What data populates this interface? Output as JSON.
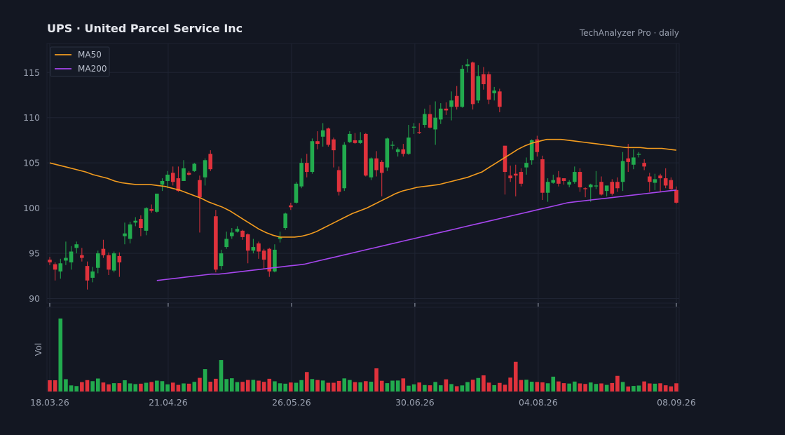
{
  "header": {
    "title": "UPS  ·  United Parcel Service Inc",
    "brand": "TechAnalyzer Pro · daily"
  },
  "colors": {
    "background": "#131722",
    "grid": "#1f2433",
    "up": "#22ab4e",
    "down": "#e0323c",
    "ma50": "#f39c1f",
    "ma200": "#a646ee",
    "text": "#9aa1b0"
  },
  "chart_data": {
    "type": "candlestick",
    "y_ticks": [
      90,
      95,
      100,
      105,
      110,
      115
    ],
    "ylim": [
      89.5,
      118.2
    ],
    "x_tick_labels": [
      "18.03.26",
      "21.04.26",
      "26.05.26",
      "30.06.26",
      "04.08.26",
      "08.09.26"
    ],
    "volume_label": "Vol",
    "legend": [
      {
        "name": "MA50",
        "color": "#f39c1f"
      },
      {
        "name": "MA200",
        "color": "#a646ee"
      }
    ],
    "closes": [
      94.0,
      93.2,
      93.9,
      94.5,
      95.2,
      96.0,
      94.5,
      92.0,
      93.0,
      95.0,
      94.8,
      93.2,
      95.0,
      94.0,
      97.2,
      98.2,
      98.6,
      97.8,
      100.0,
      99.7,
      101.6,
      103.0,
      103.7,
      102.9,
      101.9,
      104.4,
      103.7,
      104.9,
      101.2,
      105.3,
      104.3,
      93.2,
      95.0,
      96.6,
      97.3,
      97.7,
      96.8,
      95.3,
      95.7,
      95.2,
      94.3,
      93.0,
      95.4,
      96.8,
      99.4,
      100.1,
      102.7,
      105.0,
      104.0,
      107.4,
      107.1,
      108.6,
      107.0,
      106.4,
      101.8,
      107.0,
      108.2,
      107.2,
      107.5,
      103.6,
      105.5,
      104.2,
      103.9,
      107.7,
      107.0,
      106.5,
      106.0,
      107.8,
      109.0,
      108.3,
      110.4,
      108.9,
      110.0,
      111.0,
      110.8,
      111.9,
      111.2,
      115.4,
      115.9,
      111.5,
      114.6,
      113.7,
      112.0,
      113.0,
      111.2,
      104.0,
      103.3,
      103.6,
      102.7,
      105.0,
      107.5,
      106.2,
      101.7,
      102.9,
      103.1,
      102.7,
      103.0,
      102.9,
      104.0,
      102.3,
      102.1,
      102.6,
      102.5,
      101.5,
      102.5,
      101.6,
      102.2,
      105.2,
      105.1,
      105.6,
      106.0,
      104.6,
      102.9,
      103.2,
      103.3,
      102.5,
      102.1,
      100.6
    ],
    "opens": [
      94.3,
      93.8,
      93.0,
      94.2,
      94.0,
      95.6,
      94.8,
      93.6,
      92.3,
      93.4,
      95.5,
      94.8,
      93.1,
      94.7,
      96.9,
      96.6,
      98.4,
      98.8,
      97.5,
      99.9,
      99.6,
      102.6,
      103.0,
      103.9,
      103.3,
      103.0,
      103.9,
      104.1,
      103.1,
      103.4,
      106.0,
      99.1,
      93.6,
      95.7,
      96.9,
      97.4,
      97.5,
      97.1,
      95.3,
      96.1,
      95.3,
      95.5,
      93.0,
      96.6,
      97.8,
      100.3,
      100.6,
      102.4,
      105.0,
      104.0,
      107.4,
      107.9,
      108.8,
      107.6,
      104.2,
      102.2,
      107.3,
      107.5,
      107.2,
      108.2,
      103.4,
      105.5,
      105.1,
      104.5,
      106.9,
      106.2,
      106.5,
      106.0,
      108.9,
      108.4,
      109.2,
      110.4,
      108.7,
      109.8,
      111.0,
      111.2,
      112.4,
      111.2,
      115.7,
      116.1,
      111.9,
      114.8,
      114.8,
      112.7,
      112.9,
      106.9,
      103.6,
      103.8,
      104.0,
      104.5,
      105.3,
      107.6,
      105.4,
      101.7,
      102.8,
      103.4,
      103.3,
      102.6,
      102.9,
      104.0,
      102.2,
      102.3,
      102.4,
      102.9,
      101.9,
      102.9,
      102.9,
      102.9,
      105.5,
      104.8,
      105.9,
      105.0,
      103.5,
      102.8,
      103.6,
      103.3,
      103.1,
      102.0
    ],
    "highs": [
      94.6,
      94.0,
      94.4,
      96.3,
      95.8,
      96.3,
      95.6,
      94.1,
      93.5,
      95.3,
      96.5,
      95.1,
      95.2,
      95.1,
      98.4,
      98.5,
      99.0,
      99.2,
      100.1,
      100.4,
      101.6,
      103.3,
      104.1,
      104.6,
      104.6,
      105.3,
      104.1,
      105.0,
      103.6,
      105.5,
      106.4,
      99.8,
      95.4,
      97.4,
      97.8,
      98.0,
      97.6,
      97.2,
      96.6,
      96.3,
      95.5,
      95.6,
      96.0,
      97.4,
      99.5,
      100.6,
      102.9,
      105.5,
      106.0,
      107.7,
      108.5,
      109.4,
      108.9,
      107.8,
      104.6,
      107.3,
      108.5,
      108.3,
      108.4,
      108.3,
      105.6,
      106.3,
      105.3,
      107.8,
      107.4,
      106.7,
      107.1,
      109.2,
      109.4,
      109.4,
      111.0,
      111.4,
      111.8,
      111.6,
      111.7,
      112.9,
      113.5,
      115.8,
      116.5,
      116.2,
      115.8,
      115.6,
      115.1,
      113.4,
      113.2,
      106.9,
      104.7,
      104.8,
      104.4,
      105.6,
      107.6,
      108.0,
      105.8,
      103.3,
      103.7,
      104.1,
      103.3,
      103.1,
      104.6,
      104.4,
      102.3,
      102.7,
      104.1,
      103.5,
      102.2,
      103.2,
      103.4,
      106.2,
      107.1,
      106.5,
      106.2,
      105.4,
      103.9,
      103.8,
      103.8,
      104.4,
      103.4,
      102.4
    ],
    "lows": [
      93.7,
      92.0,
      92.2,
      93.7,
      93.2,
      95.0,
      94.1,
      91.0,
      91.8,
      92.8,
      94.5,
      92.6,
      92.9,
      92.4,
      96.0,
      96.1,
      98.0,
      96.9,
      97.0,
      99.5,
      99.5,
      101.9,
      102.2,
      102.5,
      101.8,
      103.0,
      103.6,
      104.0,
      97.3,
      102.5,
      104.1,
      92.9,
      93.2,
      95.5,
      96.6,
      97.3,
      96.5,
      93.9,
      95.0,
      94.4,
      93.3,
      92.4,
      92.9,
      96.2,
      97.6,
      99.8,
      100.5,
      102.2,
      103.4,
      103.8,
      106.5,
      106.8,
      106.8,
      104.5,
      101.4,
      101.9,
      107.2,
      107.1,
      107.1,
      103.5,
      103.1,
      103.5,
      101.3,
      104.1,
      106.5,
      105.7,
      105.7,
      105.9,
      108.2,
      108.2,
      108.9,
      108.8,
      107.0,
      109.3,
      110.3,
      109.7,
      110.9,
      111.1,
      115.0,
      110.9,
      111.6,
      113.1,
      111.5,
      111.9,
      110.6,
      101.5,
      102.9,
      101.3,
      102.4,
      103.7,
      104.8,
      105.7,
      100.9,
      100.7,
      102.7,
      102.4,
      102.6,
      102.3,
      102.7,
      101.8,
      101.2,
      100.7,
      102.1,
      101.4,
      101.3,
      101.4,
      101.8,
      101.9,
      104.0,
      104.3,
      105.6,
      104.2,
      101.8,
      102.0,
      101.8,
      102.2,
      102.0,
      100.5
    ],
    "volumes": [
      0.85,
      0.85,
      5.51,
      0.93,
      0.46,
      0.41,
      0.71,
      0.86,
      0.78,
      0.98,
      0.68,
      0.54,
      0.63,
      0.63,
      0.85,
      0.61,
      0.56,
      0.59,
      0.66,
      0.72,
      0.82,
      0.78,
      0.54,
      0.67,
      0.5,
      0.61,
      0.59,
      0.73,
      1.03,
      1.69,
      0.74,
      0.96,
      2.38,
      0.94,
      1.0,
      0.71,
      0.73,
      0.87,
      0.88,
      0.82,
      0.73,
      0.96,
      0.77,
      0.62,
      0.59,
      0.68,
      0.66,
      0.86,
      1.47,
      0.94,
      0.87,
      0.83,
      0.66,
      0.66,
      0.8,
      0.99,
      0.87,
      0.71,
      0.69,
      0.78,
      0.74,
      1.75,
      0.81,
      0.63,
      0.82,
      0.83,
      0.99,
      0.44,
      0.54,
      0.68,
      0.49,
      0.47,
      0.72,
      0.47,
      0.92,
      0.56,
      0.4,
      0.46,
      0.71,
      0.89,
      1.02,
      1.22,
      0.67,
      0.48,
      0.65,
      0.51,
      1.05,
      2.24,
      0.87,
      0.89,
      0.74,
      0.72,
      0.69,
      0.62,
      1.12,
      0.76,
      0.63,
      0.6,
      0.75,
      0.61,
      0.57,
      0.68,
      0.57,
      0.61,
      0.5,
      0.64,
      1.18,
      0.72,
      0.38,
      0.42,
      0.45,
      0.76,
      0.61,
      0.59,
      0.62,
      0.47,
      0.39,
      0.62
    ],
    "ma50": [
      105.0,
      104.8,
      104.6,
      104.4,
      104.2,
      104.0,
      103.7,
      103.5,
      103.3,
      103.0,
      102.8,
      102.7,
      102.6,
      102.6,
      102.6,
      102.5,
      102.4,
      102.2,
      102.0,
      101.7,
      101.4,
      101.1,
      100.7,
      100.4,
      100.1,
      99.7,
      99.2,
      98.7,
      98.2,
      97.7,
      97.3,
      97.0,
      96.8,
      96.8,
      96.8,
      96.9,
      97.1,
      97.4,
      97.8,
      98.2,
      98.6,
      99.0,
      99.4,
      99.7,
      100.0,
      100.4,
      100.8,
      101.2,
      101.6,
      101.9,
      102.1,
      102.3,
      102.4,
      102.5,
      102.6,
      102.8,
      103.0,
      103.2,
      103.4,
      103.7,
      104.0,
      104.5,
      105.0,
      105.5,
      106.0,
      106.5,
      106.9,
      107.2,
      107.4,
      107.6,
      107.6,
      107.6,
      107.5,
      107.4,
      107.3,
      107.2,
      107.1,
      107.0,
      106.9,
      106.8,
      106.7,
      106.7,
      106.7,
      106.6,
      106.6,
      106.6,
      106.5,
      106.4
    ],
    "ma200": [
      92.0,
      92.1,
      92.2,
      92.3,
      92.4,
      92.5,
      92.6,
      92.7,
      92.7,
      92.8,
      92.9,
      93.0,
      93.1,
      93.2,
      93.3,
      93.4,
      93.5,
      93.6,
      93.7,
      93.8,
      94.0,
      94.2,
      94.4,
      94.6,
      94.8,
      95.0,
      95.2,
      95.4,
      95.6,
      95.8,
      96.0,
      96.2,
      96.4,
      96.6,
      96.8,
      97.0,
      97.2,
      97.4,
      97.6,
      97.8,
      98.0,
      98.2,
      98.4,
      98.6,
      98.8,
      99.0,
      99.2,
      99.4,
      99.6,
      99.8,
      100.0,
      100.2,
      100.4,
      100.6,
      100.7,
      100.8,
      100.9,
      101.0,
      101.1,
      101.2,
      101.3,
      101.4,
      101.5,
      101.6,
      101.7,
      101.8,
      101.9,
      102.0
    ]
  }
}
